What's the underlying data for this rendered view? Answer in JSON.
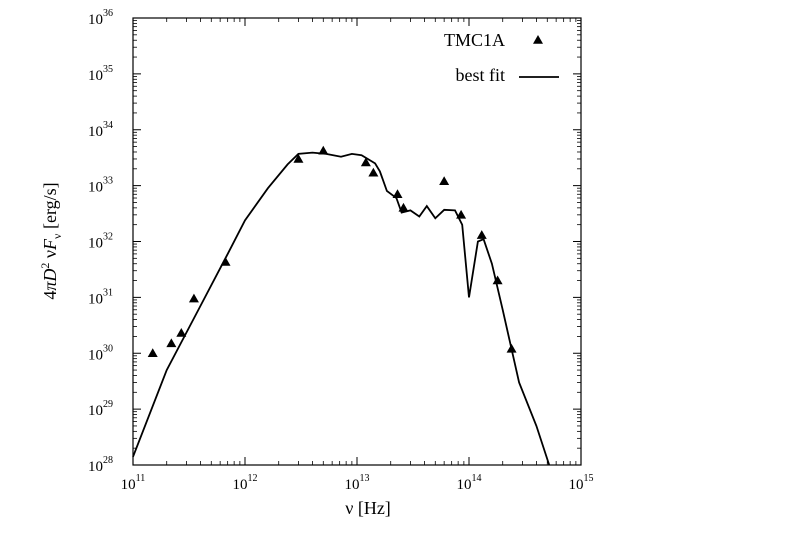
{
  "chart_data": {
    "type": "scatter",
    "xscale": "log",
    "yscale": "log",
    "xlim": [
      100000000000.0,
      1000000000000000.0
    ],
    "ylim": [
      1e+28,
      1e+36
    ],
    "xlabel": "ν [Hz]",
    "ylabel_parts": [
      "4",
      "π",
      "D",
      "2",
      " ν",
      "F",
      "ν",
      " [erg/s]"
    ],
    "x_ticks": [
      {
        "value": 100000000000.0,
        "base": "10",
        "exp": "11"
      },
      {
        "value": 1000000000000.0,
        "base": "10",
        "exp": "12"
      },
      {
        "value": 10000000000000.0,
        "base": "10",
        "exp": "13"
      },
      {
        "value": 100000000000000.0,
        "base": "10",
        "exp": "14"
      },
      {
        "value": 1000000000000000.0,
        "base": "10",
        "exp": "15"
      }
    ],
    "y_ticks": [
      {
        "value": 1e+28,
        "base": "10",
        "exp": "28"
      },
      {
        "value": 1e+29,
        "base": "10",
        "exp": "29"
      },
      {
        "value": 1e+30,
        "base": "10",
        "exp": "30"
      },
      {
        "value": 1e+31,
        "base": "10",
        "exp": "31"
      },
      {
        "value": 1e+32,
        "base": "10",
        "exp": "32"
      },
      {
        "value": 1e+33,
        "base": "10",
        "exp": "33"
      },
      {
        "value": 1e+34,
        "base": "10",
        "exp": "34"
      },
      {
        "value": 1e+35,
        "base": "10",
        "exp": "35"
      },
      {
        "value": 1e+36,
        "base": "10",
        "exp": "36"
      }
    ],
    "legend": {
      "position": "top-right",
      "entries": [
        {
          "label": "TMC1A",
          "marker": "triangle"
        },
        {
          "label": "best fit",
          "marker": "line"
        }
      ]
    },
    "series": [
      {
        "name": "TMC1A",
        "kind": "points",
        "points": [
          [
            150000000000.0,
            1e+30
          ],
          [
            220000000000.0,
            1.5e+30
          ],
          [
            270000000000.0,
            2.3e+30
          ],
          [
            350000000000.0,
            9.5e+30
          ],
          [
            670000000000.0,
            4.3e+31
          ],
          [
            3000000000000.0,
            3e+33
          ],
          [
            5000000000000.0,
            4.2e+33
          ],
          [
            12000000000000.0,
            2.6e+33
          ],
          [
            14000000000000.0,
            1.7e+33
          ],
          [
            23000000000000.0,
            7e+32
          ],
          [
            26000000000000.0,
            4e+32
          ],
          [
            60000000000000.0,
            1.2e+33
          ],
          [
            85000000000000.0,
            3e+32
          ],
          [
            130000000000000.0,
            1.3e+32
          ],
          [
            180000000000000.0,
            2e+31
          ],
          [
            240000000000000.0,
            1.2e+30
          ]
        ]
      },
      {
        "name": "best fit",
        "kind": "line",
        "points": [
          [
            100000000000.0,
            1.4e+28
          ],
          [
            200000000000.0,
            5e+29
          ],
          [
            400000000000.0,
            7e+30
          ],
          [
            700000000000.0,
            6e+31
          ],
          [
            1000000000000.0,
            2.4e+32
          ],
          [
            1600000000000.0,
            9e+32
          ],
          [
            2400000000000.0,
            2.4e+33
          ],
          [
            3000000000000.0,
            3.7e+33
          ],
          [
            4000000000000.0,
            3.9e+33
          ],
          [
            5300000000000.0,
            3.7e+33
          ],
          [
            7200000000000.0,
            3.3e+33
          ],
          [
            9000000000000.0,
            3.7e+33
          ],
          [
            11000000000000.0,
            3.5e+33
          ],
          [
            14500000000000.0,
            2.5e+33
          ],
          [
            16000000000000.0,
            1.8e+33
          ],
          [
            18500000000000.0,
            8e+32
          ],
          [
            22500000000000.0,
            6e+32
          ],
          [
            25000000000000.0,
            3.3e+32
          ],
          [
            30000000000000.0,
            3.6e+32
          ],
          [
            36000000000000.0,
            2.8e+32
          ],
          [
            42000000000000.0,
            4.3e+32
          ],
          [
            50000000000000.0,
            2.6e+32
          ],
          [
            60000000000000.0,
            3.7e+32
          ],
          [
            75000000000000.0,
            3.6e+32
          ],
          [
            87000000000000.0,
            2e+32
          ],
          [
            100000000000000.0,
            1e+31
          ],
          [
            120000000000000.0,
            1e+32
          ],
          [
            135000000000000.0,
            1.1e+32
          ],
          [
            160000000000000.0,
            4e+31
          ],
          [
            200000000000000.0,
            6e+30
          ],
          [
            280000000000000.0,
            3e+29
          ],
          [
            400000000000000.0,
            5e+28
          ],
          [
            520000000000000.0,
            1e+28
          ]
        ]
      }
    ]
  }
}
